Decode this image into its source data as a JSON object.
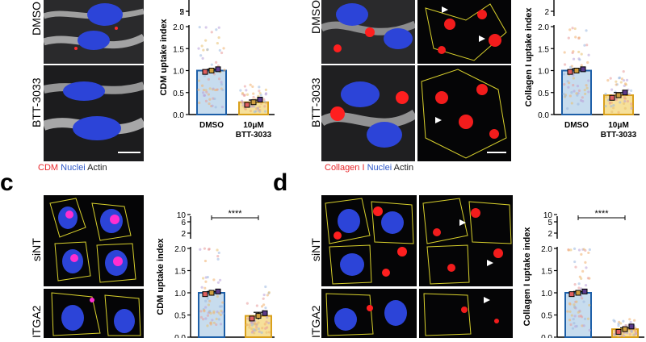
{
  "panels": {
    "a": {
      "rows": [
        "DMSO",
        "BTT-3033"
      ],
      "legend": [
        {
          "text": "CDM",
          "color": "#e8262a"
        },
        {
          "text": "Nuclei",
          "color": "#2f59c9"
        },
        {
          "text": "Actin",
          "color": "#222222"
        }
      ],
      "plot": {
        "ylabel": "CDM uptake index",
        "categories": [
          "DMSO",
          "10μM BTT-3033"
        ],
        "lower_ticks": [
          "0.0",
          "0.5",
          "1.0",
          "1.5",
          "2.0"
        ],
        "upper_ticks": [
          "2",
          "5"
        ]
      }
    },
    "b": {
      "rows": [
        "DMSO",
        "BTT-3033"
      ],
      "legend": [
        {
          "text": "Collagen I",
          "color": "#e8262a"
        },
        {
          "text": "Nuclei",
          "color": "#2f59c9"
        },
        {
          "text": "Actin",
          "color": "#222222"
        }
      ],
      "plot": {
        "ylabel": "Collagen I uptake index",
        "categories": [
          "DMSO",
          "10μM BTT-3033"
        ],
        "lower_ticks": [
          "0.0",
          "0.5",
          "1.0",
          "1.5",
          "2.0"
        ],
        "upper_ticks": [
          "2"
        ]
      }
    },
    "c": {
      "letter": "c",
      "rows": [
        "siNT",
        "ITGA2"
      ],
      "plot": {
        "ylabel": "CDM uptake index",
        "significance": "****",
        "lower_ticks": [
          "0.0",
          "0.5",
          "1.0",
          "1.5",
          "2.0"
        ],
        "upper_ticks": [
          "2",
          "6",
          "10"
        ]
      }
    },
    "d": {
      "letter": "d",
      "rows": [
        "siNT",
        "ITGA2"
      ],
      "plot": {
        "ylabel": "Collagen I uptake index",
        "significance": "****",
        "lower_ticks": [
          "0.0",
          "0.5",
          "1.0",
          "1.5",
          "2.0"
        ],
        "upper_ticks": [
          "2",
          "5",
          "10"
        ]
      }
    }
  },
  "chart_data": [
    {
      "panel": "a",
      "type": "bar",
      "ylabel": "CDM uptake index",
      "categories": [
        "DMSO",
        "10μM BTT-3033"
      ],
      "values": [
        1.0,
        0.28
      ],
      "errors": [
        0.03,
        0.05
      ],
      "bar_colors": [
        "#c7dcee",
        "#f6e09a"
      ],
      "ylim": [
        0,
        5
      ],
      "y_break": 2.0
    },
    {
      "panel": "b",
      "type": "bar",
      "ylabel": "Collagen I uptake index",
      "categories": [
        "DMSO",
        "10μM BTT-3033"
      ],
      "values": [
        1.0,
        0.44
      ],
      "errors": [
        0.04,
        0.06
      ],
      "bar_colors": [
        "#c7dcee",
        "#f6e09a"
      ],
      "ylim": [
        0,
        2.4
      ],
      "y_break": 2.0
    },
    {
      "panel": "c",
      "type": "bar",
      "ylabel": "CDM uptake index",
      "categories": [
        "siNT",
        "ITGA2"
      ],
      "values": [
        1.0,
        0.48
      ],
      "errors": [
        0.03,
        0.08
      ],
      "bar_colors": [
        "#c7dcee",
        "#f6e09a"
      ],
      "ylim": [
        0,
        10
      ],
      "y_break": 2.0,
      "significance": "****"
    },
    {
      "panel": "d",
      "type": "bar",
      "ylabel": "Collagen I uptake index",
      "categories": [
        "siNT",
        "ITGA2"
      ],
      "values": [
        1.0,
        0.18
      ],
      "errors": [
        0.03,
        0.03
      ],
      "bar_colors": [
        "#c7dcee",
        "#f6e09a"
      ],
      "ylim": [
        0,
        10
      ],
      "y_break": 2.0,
      "significance": "****"
    }
  ]
}
